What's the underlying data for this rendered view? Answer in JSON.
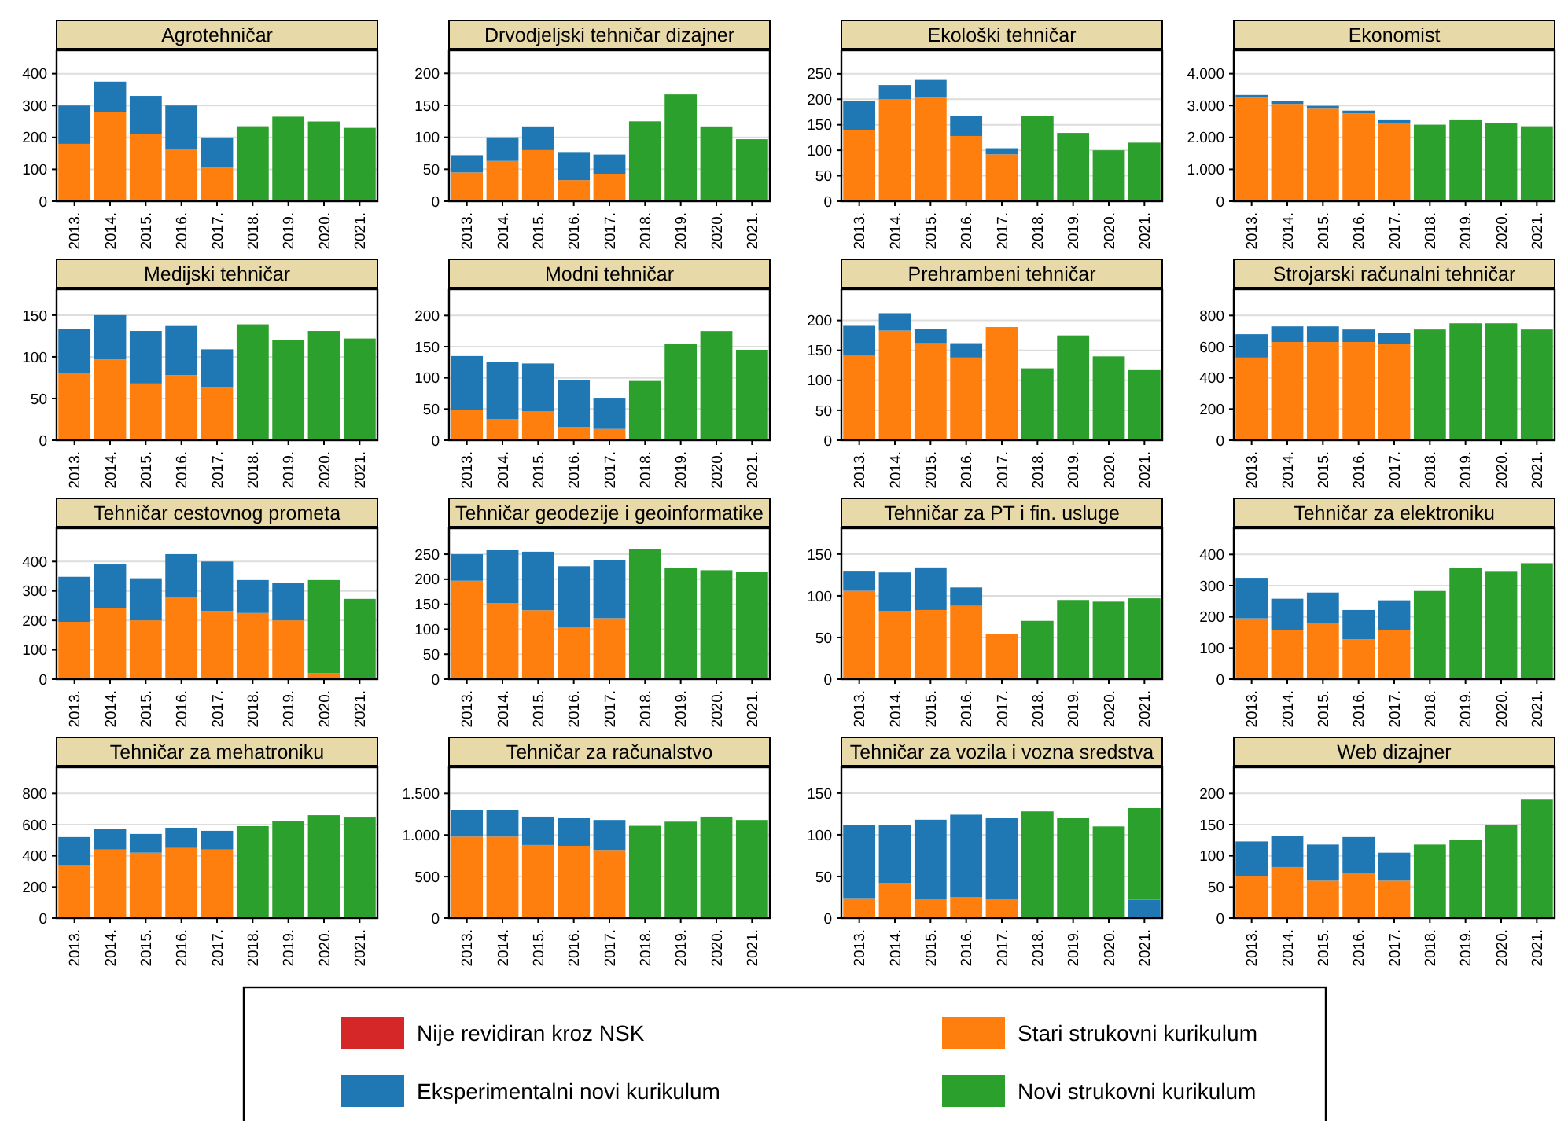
{
  "chart_data": [
    {
      "type": "bar",
      "stacked": true,
      "title": "Agrotehničar",
      "categories": [
        "2013.",
        "2014.",
        "2015.",
        "2016.",
        "2017.",
        "2018.",
        "2019.",
        "2020.",
        "2021."
      ],
      "ylim": [
        0,
        473
      ],
      "yticks": [
        0,
        100,
        200,
        300,
        400
      ],
      "grid": "y",
      "legend": "bottom",
      "series": [
        {
          "name": "Nije revidiran kroz NSK",
          "color": "#d62728",
          "values": [
            null,
            null,
            null,
            null,
            null,
            null,
            null,
            null,
            null
          ]
        },
        {
          "name": "Stari strukovni kurikulum",
          "color": "#ff7f0e",
          "values": [
            180,
            280,
            210,
            165,
            105,
            null,
            null,
            null,
            null
          ]
        },
        {
          "name": "Eksperimentalni novi kurikulum",
          "color": "#1f77b4",
          "values": [
            120,
            95,
            120,
            135,
            95,
            null,
            null,
            null,
            null
          ]
        },
        {
          "name": "Novi strukovni kurikulum",
          "color": "#2ca02c",
          "values": [
            null,
            null,
            null,
            null,
            null,
            235,
            265,
            250,
            230
          ]
        }
      ]
    },
    {
      "type": "bar",
      "stacked": true,
      "title": "Drvodjeljski tehničar dizajner",
      "categories": [
        "2013.",
        "2014.",
        "2015.",
        "2016.",
        "2017.",
        "2018.",
        "2019.",
        "2020.",
        "2021."
      ],
      "ylim": [
        0,
        236
      ],
      "yticks": [
        0,
        50,
        100,
        150,
        200
      ],
      "grid": "y",
      "legend": false,
      "series": [
        {
          "color": "#ff7f0e",
          "values": [
            45,
            63,
            80,
            33,
            43,
            null,
            null,
            null,
            null
          ]
        },
        {
          "color": "#1f77b4",
          "values": [
            27,
            37,
            37,
            44,
            30,
            null,
            null,
            null,
            null
          ]
        },
        {
          "color": "#2ca02c",
          "values": [
            null,
            null,
            null,
            null,
            null,
            125,
            167,
            117,
            97
          ]
        }
      ]
    },
    {
      "type": "bar",
      "stacked": true,
      "title": "Ekološki tehničar",
      "categories": [
        "2013.",
        "2014.",
        "2015.",
        "2016.",
        "2017.",
        "2018.",
        "2019.",
        "2020.",
        "2021."
      ],
      "ylim": [
        0,
        296
      ],
      "yticks": [
        0,
        50,
        100,
        150,
        200,
        250
      ],
      "grid": "y",
      "legend": false,
      "series": [
        {
          "color": "#ff7f0e",
          "values": [
            140,
            200,
            203,
            128,
            92,
            null,
            null,
            null,
            null
          ]
        },
        {
          "color": "#1f77b4",
          "values": [
            57,
            28,
            35,
            40,
            12,
            null,
            null,
            null,
            null
          ]
        },
        {
          "color": "#2ca02c",
          "values": [
            null,
            null,
            null,
            null,
            null,
            168,
            134,
            100,
            115
          ]
        }
      ]
    },
    {
      "type": "bar",
      "stacked": true,
      "title": "Ekonomist",
      "categories": [
        "2013.",
        "2014.",
        "2015.",
        "2016.",
        "2017.",
        "2018.",
        "2019.",
        "2020.",
        "2021."
      ],
      "ylim": [
        0,
        4730
      ],
      "yticks": [
        0,
        {
          "value": 1000,
          "label": "1.000"
        },
        {
          "value": 2000,
          "label": "2.000"
        },
        {
          "value": 3000,
          "label": "3.000"
        },
        {
          "value": 4000,
          "label": "4.000"
        }
      ],
      "grid": "y",
      "legend": false,
      "series": [
        {
          "color": "#ff7f0e",
          "values": [
            3250,
            3050,
            2900,
            2750,
            2450,
            null,
            null,
            null,
            null
          ]
        },
        {
          "color": "#1f77b4",
          "values": [
            80,
            80,
            90,
            90,
            90,
            null,
            null,
            null,
            null
          ]
        },
        {
          "color": "#2ca02c",
          "values": [
            null,
            null,
            null,
            null,
            null,
            2400,
            2540,
            2440,
            2350
          ]
        }
      ]
    },
    {
      "type": "bar",
      "stacked": true,
      "title": "Medijski tehničar",
      "categories": [
        "2013.",
        "2014.",
        "2015.",
        "2016.",
        "2017.",
        "2018.",
        "2019.",
        "2020.",
        "2021."
      ],
      "ylim": [
        0,
        181
      ],
      "yticks": [
        0,
        50,
        100,
        150
      ],
      "grid": "y",
      "legend": false,
      "series": [
        {
          "color": "#ff7f0e",
          "values": [
            81,
            97,
            68,
            78,
            64,
            null,
            null,
            null,
            null
          ]
        },
        {
          "color": "#1f77b4",
          "values": [
            52,
            53,
            63,
            59,
            45,
            null,
            null,
            null,
            null
          ]
        },
        {
          "color": "#2ca02c",
          "values": [
            null,
            null,
            null,
            null,
            null,
            139,
            120,
            131,
            122
          ]
        }
      ]
    },
    {
      "type": "bar",
      "stacked": true,
      "title": "Modni tehničar",
      "categories": [
        "2013.",
        "2014.",
        "2015.",
        "2016.",
        "2017.",
        "2018.",
        "2019.",
        "2020.",
        "2021."
      ],
      "ylim": [
        0,
        242
      ],
      "yticks": [
        0,
        50,
        100,
        150,
        200
      ],
      "grid": "y",
      "legend": false,
      "series": [
        {
          "color": "#ff7f0e",
          "values": [
            48,
            34,
            46,
            21,
            18,
            null,
            null,
            null,
            null
          ]
        },
        {
          "color": "#1f77b4",
          "values": [
            87,
            91,
            77,
            75,
            50,
            null,
            null,
            null,
            null
          ]
        },
        {
          "color": "#2ca02c",
          "values": [
            null,
            null,
            null,
            null,
            null,
            95,
            155,
            175,
            145
          ]
        }
      ]
    },
    {
      "type": "bar",
      "stacked": true,
      "title": "Prehrambeni tehničar",
      "categories": [
        "2013.",
        "2014.",
        "2015.",
        "2016.",
        "2017.",
        "2018.",
        "2019.",
        "2020.",
        "2021."
      ],
      "ylim": [
        0,
        252
      ],
      "yticks": [
        0,
        50,
        100,
        150,
        200
      ],
      "grid": "y",
      "legend": false,
      "series": [
        {
          "color": "#ff7f0e",
          "values": [
            141,
            183,
            162,
            138,
            189,
            null,
            null,
            null,
            null
          ]
        },
        {
          "color": "#1f77b4",
          "values": [
            50,
            29,
            24,
            24,
            null,
            null,
            null,
            null,
            null
          ]
        },
        {
          "color": "#2ca02c",
          "values": [
            null,
            null,
            null,
            null,
            null,
            120,
            175,
            140,
            117
          ]
        }
      ]
    },
    {
      "type": "bar",
      "stacked": true,
      "title": "Strojarski računalni tehničar",
      "categories": [
        "2013.",
        "2014.",
        "2015.",
        "2016.",
        "2017.",
        "2018.",
        "2019.",
        "2020.",
        "2021."
      ],
      "ylim": [
        0,
        968
      ],
      "yticks": [
        0,
        200,
        400,
        600,
        800
      ],
      "grid": "y",
      "legend": false,
      "series": [
        {
          "color": "#ff7f0e",
          "values": [
            530,
            630,
            630,
            630,
            620,
            null,
            null,
            null,
            null
          ]
        },
        {
          "color": "#1f77b4",
          "values": [
            150,
            100,
            100,
            80,
            70,
            null,
            null,
            null,
            null
          ]
        },
        {
          "color": "#2ca02c",
          "values": [
            null,
            null,
            null,
            null,
            null,
            710,
            750,
            750,
            710
          ]
        }
      ]
    },
    {
      "type": "bar",
      "stacked": true,
      "title": "Tehničar cestovnog prometa",
      "categories": [
        "2013.",
        "2014.",
        "2015.",
        "2016.",
        "2017.",
        "2018.",
        "2019.",
        "2020.",
        "2021."
      ],
      "ylim": [
        0,
        513
      ],
      "yticks": [
        0,
        100,
        200,
        300,
        400
      ],
      "grid": "y",
      "legend": false,
      "series": [
        {
          "color": "#ff7f0e",
          "values": [
            195,
            242,
            200,
            280,
            232,
            225,
            200,
            20,
            null
          ]
        },
        {
          "color": "#1f77b4",
          "values": [
            153,
            148,
            143,
            145,
            168,
            112,
            127,
            null,
            null
          ]
        },
        {
          "color": "#2ca02c",
          "values": [
            null,
            null,
            null,
            null,
            null,
            null,
            null,
            317,
            273
          ]
        }
      ]
    },
    {
      "type": "bar",
      "stacked": true,
      "title": "Tehničar geodezije i geoinformatike",
      "categories": [
        "2013.",
        "2014.",
        "2015.",
        "2016.",
        "2017.",
        "2018.",
        "2019.",
        "2020.",
        "2021."
      ],
      "ylim": [
        0,
        302
      ],
      "yticks": [
        0,
        50,
        100,
        150,
        200,
        250
      ],
      "grid": "y",
      "legend": false,
      "series": [
        {
          "color": "#ff7f0e",
          "values": [
            197,
            152,
            138,
            103,
            122,
            null,
            null,
            null,
            null
          ]
        },
        {
          "color": "#1f77b4",
          "values": [
            53,
            106,
            117,
            123,
            116,
            null,
            null,
            null,
            null
          ]
        },
        {
          "color": "#2ca02c",
          "values": [
            null,
            null,
            null,
            null,
            null,
            260,
            222,
            218,
            215
          ]
        }
      ]
    },
    {
      "type": "bar",
      "stacked": true,
      "title": "Tehničar za PT i fin. usluge",
      "categories": [
        "2013.",
        "2014.",
        "2015.",
        "2016.",
        "2017.",
        "2018.",
        "2019.",
        "2020.",
        "2021."
      ],
      "ylim": [
        0,
        181
      ],
      "yticks": [
        0,
        50,
        100,
        150
      ],
      "grid": "y",
      "legend": false,
      "series": [
        {
          "color": "#ff7f0e",
          "values": [
            106,
            82,
            83,
            88,
            54,
            null,
            null,
            null,
            null
          ]
        },
        {
          "color": "#1f77b4",
          "values": [
            24,
            46,
            51,
            22,
            null,
            null,
            null,
            null,
            null
          ]
        },
        {
          "color": "#2ca02c",
          "values": [
            null,
            null,
            null,
            null,
            null,
            70,
            95,
            93,
            97
          ]
        }
      ]
    },
    {
      "type": "bar",
      "stacked": true,
      "title": "Tehničar za elektroniku",
      "categories": [
        "2013.",
        "2014.",
        "2015.",
        "2016.",
        "2017.",
        "2018.",
        "2019.",
        "2020.",
        "2021."
      ],
      "ylim": [
        0,
        484
      ],
      "yticks": [
        0,
        100,
        200,
        300,
        400
      ],
      "grid": "y",
      "legend": false,
      "series": [
        {
          "color": "#ff7f0e",
          "values": [
            195,
            158,
            180,
            128,
            158,
            null,
            null,
            null,
            null
          ]
        },
        {
          "color": "#1f77b4",
          "values": [
            130,
            100,
            98,
            94,
            95,
            null,
            null,
            null,
            null
          ]
        },
        {
          "color": "#2ca02c",
          "values": [
            null,
            null,
            null,
            null,
            null,
            283,
            357,
            347,
            372
          ]
        }
      ]
    },
    {
      "type": "bar",
      "stacked": true,
      "title": "Tehničar za mehatroniku",
      "categories": [
        "2013.",
        "2014.",
        "2015.",
        "2016.",
        "2017.",
        "2018.",
        "2019.",
        "2020.",
        "2021."
      ],
      "ylim": [
        0,
        968
      ],
      "yticks": [
        0,
        200,
        400,
        600,
        800
      ],
      "grid": "y",
      "legend": false,
      "series": [
        {
          "color": "#ff7f0e",
          "values": [
            340,
            440,
            420,
            450,
            440,
            null,
            null,
            null,
            null
          ]
        },
        {
          "color": "#1f77b4",
          "values": [
            180,
            130,
            120,
            130,
            120,
            null,
            null,
            null,
            null
          ]
        },
        {
          "color": "#2ca02c",
          "values": [
            null,
            null,
            null,
            null,
            null,
            590,
            620,
            660,
            650
          ]
        }
      ]
    },
    {
      "type": "bar",
      "stacked": true,
      "title": "Tehničar za računalstvo",
      "categories": [
        "2013.",
        "2014.",
        "2015.",
        "2016.",
        "2017.",
        "2018.",
        "2019.",
        "2020.",
        "2021."
      ],
      "ylim": [
        0,
        1815
      ],
      "yticks": [
        0,
        500,
        {
          "value": 1000,
          "label": "1.000"
        },
        {
          "value": 1500,
          "label": "1.500"
        }
      ],
      "grid": "y",
      "legend": false,
      "series": [
        {
          "color": "#ff7f0e",
          "values": [
            980,
            980,
            880,
            870,
            820,
            null,
            null,
            null,
            null
          ]
        },
        {
          "color": "#1f77b4",
          "values": [
            320,
            320,
            340,
            340,
            360,
            null,
            null,
            null,
            null
          ]
        },
        {
          "color": "#2ca02c",
          "values": [
            null,
            null,
            null,
            null,
            null,
            1110,
            1160,
            1220,
            1180
          ]
        }
      ]
    },
    {
      "type": "bar",
      "stacked": true,
      "title": "Tehničar za vozila i vozna sredstva",
      "categories": [
        "2013.",
        "2014.",
        "2015.",
        "2016.",
        "2017.",
        "2018.",
        "2019.",
        "2020.",
        "2021."
      ],
      "ylim": [
        0,
        181
      ],
      "yticks": [
        0,
        50,
        100,
        150
      ],
      "grid": "y",
      "legend": false,
      "series": [
        {
          "color": "#ff7f0e",
          "values": [
            24,
            42,
            23,
            25,
            23,
            null,
            null,
            null,
            null
          ]
        },
        {
          "color": "#1f77b4",
          "values": [
            88,
            70,
            95,
            99,
            97,
            null,
            null,
            null,
            22
          ]
        },
        {
          "color": "#2ca02c",
          "values": [
            null,
            null,
            null,
            null,
            null,
            128,
            120,
            110,
            110
          ]
        }
      ]
    },
    {
      "type": "bar",
      "stacked": true,
      "title": "Web dizajner",
      "categories": [
        "2013.",
        "2014.",
        "2015.",
        "2016.",
        "2017.",
        "2018.",
        "2019.",
        "2020.",
        "2021."
      ],
      "ylim": [
        0,
        242
      ],
      "yticks": [
        0,
        50,
        100,
        150,
        200
      ],
      "grid": "y",
      "legend": false,
      "series": [
        {
          "color": "#ff7f0e",
          "values": [
            68,
            82,
            60,
            72,
            60,
            null,
            null,
            null,
            null
          ]
        },
        {
          "color": "#1f77b4",
          "values": [
            55,
            50,
            58,
            58,
            45,
            null,
            null,
            null,
            null
          ]
        },
        {
          "color": "#2ca02c",
          "values": [
            null,
            null,
            null,
            null,
            null,
            118,
            125,
            150,
            190
          ]
        }
      ]
    }
  ]
}
